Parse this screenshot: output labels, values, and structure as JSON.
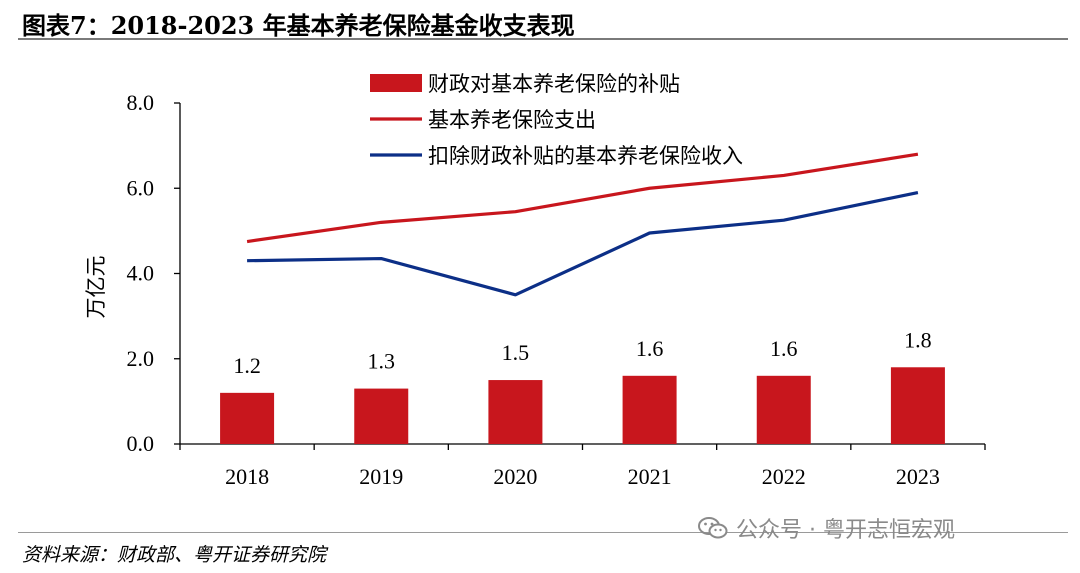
{
  "figure": {
    "title": "图表7：2018-2023 年基本养老保险基金收支表现",
    "source": "资料来源：财政部、粤开证券研究院",
    "watermark": "公众号 · 粤开志恒宏观",
    "watermark_icon": "wechat-icon"
  },
  "chart_data": {
    "type": "bar",
    "categories": [
      "2018",
      "2019",
      "2020",
      "2021",
      "2022",
      "2023"
    ],
    "ylabel": "万亿元",
    "ylim": [
      0,
      8
    ],
    "yticks": [
      "0.0",
      "2.0",
      "4.0",
      "6.0",
      "8.0"
    ],
    "grid": false,
    "legend_position": "top-right",
    "series": [
      {
        "name": "财政对基本养老保险的补贴",
        "kind": "bar",
        "color": "#c8161d",
        "values": [
          1.2,
          1.3,
          1.5,
          1.6,
          1.6,
          1.8
        ],
        "labels": [
          "1.2",
          "1.3",
          "1.5",
          "1.6",
          "1.6",
          "1.8"
        ]
      },
      {
        "name": "基本养老保险支出",
        "kind": "line",
        "color": "#c8161d",
        "values": [
          4.75,
          5.2,
          5.45,
          6.0,
          6.3,
          6.8
        ]
      },
      {
        "name": "扣除财政补贴的基本养老保险收入",
        "kind": "line",
        "color": "#0c2f87",
        "values": [
          4.3,
          4.35,
          3.5,
          4.95,
          5.25,
          5.9
        ]
      }
    ]
  }
}
